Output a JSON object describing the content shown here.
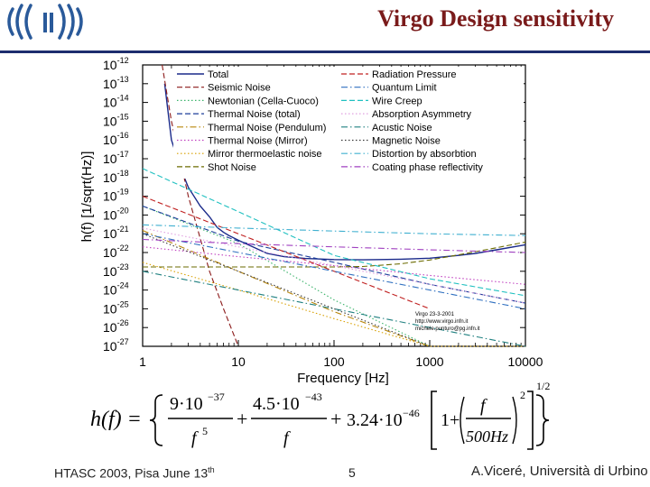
{
  "header": {
    "title": "Virgo Design sensitivity"
  },
  "chart_data": {
    "type": "line",
    "title": "",
    "xlabel": "Frequency [Hz]",
    "ylabel": "h(f) [1/sqrt(Hz)]",
    "x_scale": "log",
    "y_scale": "log",
    "xlim": [
      1,
      10000
    ],
    "ylim": [
      1e-27,
      1e-12
    ],
    "x_ticks": [
      "1",
      "10",
      "100",
      "1000",
      "10000"
    ],
    "y_tick_exponents": [
      "-12",
      "-13",
      "-14",
      "-15",
      "-16",
      "-17",
      "-18",
      "-19",
      "-20",
      "-21",
      "-22",
      "-23",
      "-24",
      "-25",
      "-26",
      "-27"
    ],
    "grid": false,
    "legend_placement": "top-center",
    "annotation": [
      "Virgo 23-3-2001",
      "http://www.virgo.infn.it",
      "michele.punturo@pg.infn.it"
    ],
    "series": [
      {
        "name": "Total",
        "color": "#1a2a8a",
        "style": "solid",
        "x": [
          1.7,
          2,
          2.5,
          3,
          4,
          5,
          6,
          7,
          8,
          10,
          20,
          30,
          50,
          100,
          200,
          300,
          500,
          1000,
          2000,
          3000,
          5000,
          10000
        ],
        "y": [
          1e-13,
          1e-16,
          3e-18,
          3e-19,
          3e-20,
          8e-21,
          2.2e-21,
          1.2e-21,
          8e-22,
          4.5e-22,
          9e-23,
          6e-23,
          4.8e-23,
          4.2e-23,
          4.1e-23,
          4.2e-23,
          4.4e-23,
          5e-23,
          7e-23,
          9e-23,
          1.4e-22,
          2.6e-22
        ]
      },
      {
        "name": "Seismic Noise",
        "color": "#8b1a1a",
        "style": "dashed",
        "x": [
          1.6,
          2,
          3,
          5,
          7,
          10
        ],
        "y": [
          1e-12,
          1e-15,
          1e-19,
          1e-23,
          1e-25,
          1e-27
        ]
      },
      {
        "name": "Newtonian (Cella-Cuoco)",
        "color": "#3bb36a",
        "style": "dotted",
        "x": [
          1,
          10,
          100,
          1000
        ],
        "y": [
          3e-20,
          3e-22,
          3e-25,
          3e-28
        ]
      },
      {
        "name": "Thermal Noise (total)",
        "color": "#1b3d9a",
        "style": "dashed",
        "x": [
          1,
          10,
          100,
          1000,
          10000
        ],
        "y": [
          3e-20,
          4e-22,
          3e-23,
          2e-24,
          2e-25
        ]
      },
      {
        "name": "Thermal Noise (Pendulum)",
        "color": "#b8860b",
        "style": "dashdot",
        "x": [
          1,
          10,
          100,
          1000
        ],
        "y": [
          1.5e-21,
          1e-23,
          7e-26,
          5e-28
        ]
      },
      {
        "name": "Thermal Noise (Mirror)",
        "color": "#c040c0",
        "style": "dotted",
        "x": [
          1,
          10,
          100,
          1000,
          10000
        ],
        "y": [
          2e-22,
          6e-23,
          2e-23,
          6e-24,
          2e-24
        ]
      },
      {
        "name": "Mirror thermoelastic noise",
        "color": "#d8a000",
        "style": "dotted",
        "x": [
          1,
          10,
          100,
          1000,
          10000
        ],
        "y": [
          3e-23,
          1e-24,
          3e-26,
          1e-27,
          3e-29
        ]
      },
      {
        "name": "Shot Noise",
        "color": "#6b6b00",
        "style": "dashed",
        "x": [
          1,
          10,
          100,
          200,
          500,
          1000,
          2000,
          5000,
          10000
        ],
        "y": [
          1.7e-23,
          1.7e-23,
          1.7e-23,
          1.8e-23,
          2.5e-23,
          4e-23,
          7.5e-23,
          1.8e-22,
          3.6e-22
        ]
      },
      {
        "name": "Radiation Pressure",
        "color": "#c02020",
        "style": "dashed",
        "x": [
          1,
          10,
          100,
          1000
        ],
        "y": [
          1e-19,
          1e-21,
          1e-23,
          1e-25
        ]
      },
      {
        "name": "Quantum Limit",
        "color": "#3070c0",
        "style": "dashdot",
        "x": [
          1,
          10,
          100,
          1000,
          10000
        ],
        "y": [
          1e-21,
          1e-22,
          1e-23,
          1e-24,
          1e-25
        ]
      },
      {
        "name": "Wire Creep",
        "color": "#20c0c0",
        "style": "dashed",
        "x": [
          1,
          10,
          100,
          1000,
          10000
        ],
        "y": [
          3e-18,
          1.5e-20,
          7e-23,
          4e-24,
          5e-25
        ]
      },
      {
        "name": "Absorption Asymmetry",
        "color": "#e0a0e0",
        "style": "dotted",
        "x": [
          1,
          10,
          100,
          1000,
          10000
        ],
        "y": [
          2e-21,
          2e-22,
          2e-23,
          2e-24,
          2e-25
        ]
      },
      {
        "name": "Acustic Noise",
        "color": "#208080",
        "style": "dashdot",
        "x": [
          1,
          10,
          100,
          1000,
          10000
        ],
        "y": [
          1e-23,
          1e-24,
          1e-25,
          1e-26,
          1e-27
        ]
      },
      {
        "name": "Magnetic Noise",
        "color": "#3a3a3a",
        "style": "dotted",
        "x": [
          1,
          10,
          100,
          1000
        ],
        "y": [
          1e-21,
          1e-23,
          1e-25,
          1e-27
        ]
      },
      {
        "name": "Distortion by absorbtion",
        "color": "#40b0d0",
        "style": "dashdot",
        "x": [
          1,
          10,
          100,
          1000,
          10000
        ],
        "y": [
          3e-21,
          2e-21,
          1.4e-21,
          1e-21,
          8e-22
        ]
      },
      {
        "name": "Coating phase reflectivity",
        "color": "#a040c0",
        "style": "dashdot",
        "x": [
          1,
          10,
          100,
          1000,
          10000
        ],
        "y": [
          5e-22,
          3e-22,
          2e-22,
          1.4e-22,
          1e-22
        ]
      }
    ]
  },
  "formula": {
    "lhs": "h(f) =",
    "term1_num": "9·10",
    "term1_num_exp": "−37",
    "term1_den": "f",
    "term1_den_exp": "5",
    "term2_num": "4.5·10",
    "term2_num_exp": "−43",
    "term2_den": "f",
    "term3": "3.24·10",
    "term3_exp": "−46",
    "bracket_one": "1+",
    "ratio_num": "f",
    "ratio_den": "500Hz",
    "ratio_exp": "2",
    "outer_exp": "1/2"
  },
  "footer": {
    "left_text": "HTASC 2003, Pisa June 13",
    "left_sup": "th",
    "page": "5",
    "right_text": "A.Viceré, Università di Urbino"
  }
}
